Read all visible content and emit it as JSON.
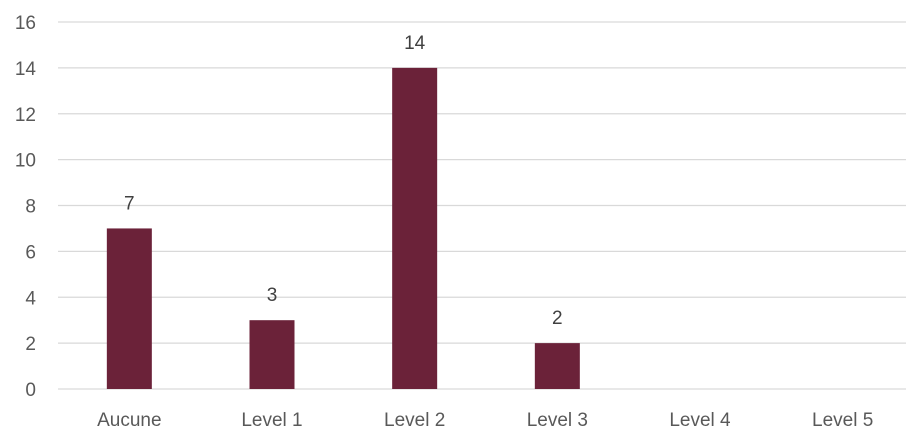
{
  "chart_data": {
    "type": "bar",
    "title": "",
    "xlabel": "",
    "ylabel": "",
    "categories": [
      "Aucune",
      "Level 1",
      "Level 2",
      "Level 3",
      "Level 4",
      "Level 5"
    ],
    "values": [
      7,
      3,
      14,
      2,
      null,
      null
    ],
    "data_labels": [
      "7",
      "3",
      "14",
      "2",
      "",
      ""
    ],
    "ylim": [
      0,
      16
    ],
    "yticks": [
      0,
      2,
      4,
      6,
      8,
      10,
      12,
      14,
      16
    ],
    "grid": true,
    "legend": "none",
    "bar_color": "#6b2239",
    "grid_color": "#d9d9d9",
    "text_color": "#595959"
  }
}
